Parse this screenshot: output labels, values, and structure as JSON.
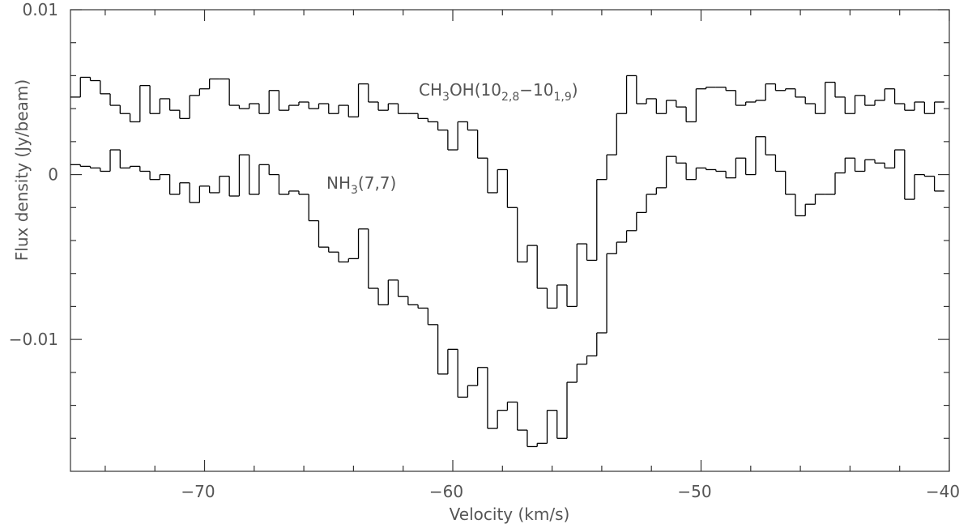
{
  "chart_data": {
    "type": "step",
    "xlabel": "Velocity (km/s)",
    "ylabel": "Flux density (Jy/beam)",
    "xlim": [
      -75.4,
      -40
    ],
    "ylim": [
      -0.018,
      0.01
    ],
    "xticks": [
      {
        "value": -70,
        "label": "−70"
      },
      {
        "value": -60,
        "label": "−60"
      },
      {
        "value": -50,
        "label": "−50"
      },
      {
        "value": -40,
        "label": "−40"
      }
    ],
    "xminorticks": [
      -74,
      -72,
      -68,
      -66,
      -64,
      -62,
      -58,
      -56,
      -54,
      -52,
      -48,
      -46,
      -44,
      -42
    ],
    "yticks": [
      {
        "value": -0.01,
        "label": "−0.01"
      },
      0,
      0.01
    ],
    "yminorticks": [
      -0.016,
      -0.014,
      -0.012,
      -0.008,
      -0.006,
      -0.004,
      -0.002,
      0.002,
      0.004,
      0.006,
      0.008
    ],
    "x": [
      -75.2,
      -74.8,
      -74.4,
      -74.0,
      -73.6,
      -73.2,
      -72.8,
      -72.4,
      -72.0,
      -71.6,
      -71.2,
      -70.8,
      -70.4,
      -70.0,
      -69.6,
      -69.2,
      -68.8,
      -68.4,
      -68.0,
      -67.6,
      -67.2,
      -66.8,
      -66.4,
      -66.0,
      -65.6,
      -65.2,
      -64.8,
      -64.4,
      -64.0,
      -63.6,
      -63.2,
      -62.8,
      -62.4,
      -62.0,
      -61.6,
      -61.2,
      -60.8,
      -60.4,
      -60.0,
      -59.6,
      -59.2,
      -58.8,
      -58.4,
      -58.0,
      -57.6,
      -57.2,
      -56.8,
      -56.4,
      -56.0,
      -55.6,
      -55.2,
      -54.8,
      -54.4,
      -54.0,
      -53.6,
      -53.2,
      -52.8,
      -52.4,
      -52.0,
      -51.6,
      -51.2,
      -50.8,
      -50.4,
      -50.0,
      -49.6,
      -49.2,
      -48.8,
      -48.4,
      -48.0,
      -47.6,
      -47.2,
      -46.8,
      -46.4,
      -46.0,
      -45.6,
      -45.2,
      -44.8,
      -44.4,
      -44.0,
      -43.6,
      -43.2,
      -42.8,
      -42.4,
      -42.0,
      -41.6,
      -41.2,
      -40.8,
      -40.4
    ],
    "series": [
      {
        "label_parts": [
          "CH",
          "3",
          "OH(10",
          "2,8",
          "−10",
          "1,9",
          ")"
        ],
        "color": "#000000",
        "values": [
          0.0047,
          0.0059,
          0.0057,
          0.0049,
          0.0042,
          0.0037,
          0.0032,
          0.0054,
          0.0037,
          0.0046,
          0.0039,
          0.0034,
          0.0048,
          0.0052,
          0.0058,
          0.0058,
          0.0042,
          0.004,
          0.0043,
          0.0037,
          0.0051,
          0.0039,
          0.0042,
          0.0044,
          0.004,
          0.0043,
          0.0037,
          0.0042,
          0.0035,
          0.0055,
          0.0044,
          0.0039,
          0.0043,
          0.0037,
          0.0037,
          0.0034,
          0.0032,
          0.0027,
          0.0015,
          0.0032,
          0.0027,
          0.001,
          -0.0011,
          0.0003,
          -0.002,
          -0.0053,
          -0.0043,
          -0.0069,
          -0.0081,
          -0.0067,
          -0.008,
          -0.0042,
          -0.0052,
          -0.0003,
          0.0012,
          0.0037,
          0.006,
          0.0043,
          0.0046,
          0.0037,
          0.0045,
          0.0041,
          0.0032,
          0.0052,
          0.0053,
          0.0053,
          0.0051,
          0.0042,
          0.0044,
          0.0045,
          0.0055,
          0.0051,
          0.0052,
          0.0047,
          0.0043,
          0.0037,
          0.0056,
          0.0047,
          0.0037,
          0.0048,
          0.0042,
          0.0045,
          0.0052,
          0.0043,
          0.0039,
          0.0044,
          0.0037,
          0.0044
        ]
      },
      {
        "label_parts": [
          "NH",
          "3",
          "(7,7)"
        ],
        "color": "#000000",
        "values": [
          0.0006,
          0.0005,
          0.0004,
          0.0002,
          0.0015,
          0.0004,
          0.0005,
          0.0002,
          -0.0003,
          0,
          -0.0012,
          -0.0005,
          -0.0017,
          -0.0007,
          -0.0011,
          -0.0001,
          -0.0013,
          0.0012,
          -0.0012,
          0.0006,
          0,
          -0.0012,
          -0.001,
          -0.0012,
          -0.0028,
          -0.0044,
          -0.0047,
          -0.0053,
          -0.0051,
          -0.0033,
          -0.0069,
          -0.0079,
          -0.0064,
          -0.0074,
          -0.0079,
          -0.0081,
          -0.0091,
          -0.0121,
          -0.0106,
          -0.0135,
          -0.0128,
          -0.0117,
          -0.0154,
          -0.0143,
          -0.0138,
          -0.0155,
          -0.0165,
          -0.0163,
          -0.0143,
          -0.016,
          -0.0126,
          -0.0115,
          -0.011,
          -0.0096,
          -0.0048,
          -0.0041,
          -0.0034,
          -0.0023,
          -0.0012,
          -0.0008,
          0.0011,
          0.0007,
          -0.0003,
          0.0004,
          0.0003,
          0.0002,
          -0.0002,
          0.001,
          0,
          0.0023,
          0.0012,
          0.0002,
          -0.0012,
          -0.0025,
          -0.0018,
          -0.0012,
          -0.0012,
          0.0001,
          0.001,
          0.0002,
          0.0009,
          0.0007,
          0.0004,
          0.0015,
          -0.0015,
          0,
          -0.0001,
          -0.001
        ]
      }
    ]
  }
}
